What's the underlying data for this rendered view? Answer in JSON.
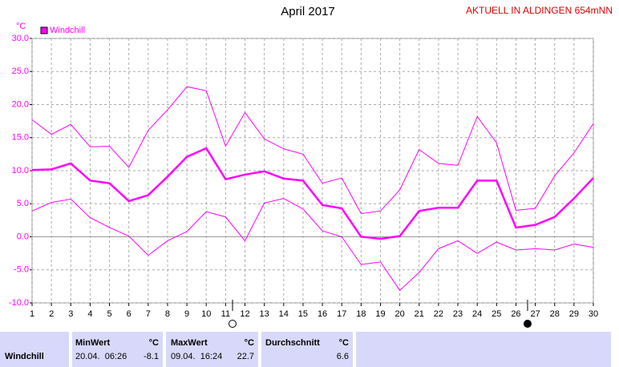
{
  "chart_data": {
    "type": "line",
    "title": "April 2017",
    "subtitle": "AKTUELL IN ALDINGEN 654mNN",
    "y_label": "°C",
    "x": [
      1,
      2,
      3,
      4,
      5,
      6,
      7,
      8,
      9,
      10,
      11,
      12,
      13,
      14,
      15,
      16,
      17,
      18,
      19,
      20,
      21,
      22,
      23,
      24,
      25,
      26,
      27,
      28,
      29,
      30
    ],
    "xlim": [
      1,
      30
    ],
    "xticks": [
      1,
      2,
      3,
      4,
      5,
      6,
      7,
      8,
      9,
      10,
      11,
      12,
      13,
      14,
      15,
      16,
      17,
      18,
      19,
      20,
      21,
      22,
      23,
      24,
      25,
      26,
      27,
      28,
      29,
      30
    ],
    "ylim": [
      -10,
      30
    ],
    "yticks": [
      {
        "value": -10,
        "label": "-10.0"
      },
      {
        "value": -5,
        "label": "-5.0"
      },
      {
        "value": 0,
        "label": "0.0"
      },
      {
        "value": 5,
        "label": "5.0"
      },
      {
        "value": 10,
        "label": "10.0"
      },
      {
        "value": 15,
        "label": "15.0"
      },
      {
        "value": 20,
        "label": "20.0"
      },
      {
        "value": 25,
        "label": "25.0"
      },
      {
        "value": 30,
        "label": "30.0"
      }
    ],
    "grid": true,
    "legend": "top-left",
    "series": [
      {
        "name": "Windchill",
        "color": "#ff00ff",
        "values": [
          10.1,
          10.2,
          11.1,
          8.5,
          8.1,
          5.4,
          6.3,
          9.1,
          12.1,
          13.4,
          8.7,
          9.4,
          9.9,
          8.8,
          8.5,
          4.8,
          4.3,
          0.0,
          -0.3,
          0.1,
          3.9,
          4.4,
          4.4,
          8.5,
          8.5,
          1.4,
          1.8,
          3.0,
          5.8,
          8.9
        ]
      },
      {
        "color": "#ff00ff",
        "values": [
          17.7,
          15.5,
          17.0,
          13.6,
          13.7,
          10.5,
          16.1,
          19.2,
          22.7,
          22.1,
          13.7,
          18.8,
          14.8,
          13.3,
          12.5,
          8.1,
          8.9,
          3.5,
          3.9,
          7.1,
          13.2,
          11.1,
          10.8,
          18.2,
          14.2,
          4.0,
          4.3,
          9.2,
          12.7,
          17.1
        ]
      },
      {
        "color": "#ff00ff",
        "values": [
          3.9,
          5.2,
          5.7,
          2.9,
          1.4,
          0.1,
          -2.8,
          -0.6,
          0.8,
          3.8,
          3.0,
          -0.6,
          5.1,
          5.8,
          4.2,
          0.9,
          0.0,
          -4.2,
          -3.8,
          -8.1,
          -5.4,
          -1.8,
          -0.6,
          -2.5,
          -0.8,
          -2.0,
          -1.8,
          -2.0,
          -1.1,
          -1.6
        ]
      }
    ]
  },
  "table": {
    "headers": [
      "MinWert",
      "°C",
      "MaxWert",
      "°C",
      "Durchschnitt",
      "°C"
    ],
    "rows": [
      [
        "Windchill",
        "20.04.  06:26",
        "-8.1",
        "09.04.  16:24",
        "22.7",
        "6.6"
      ]
    ]
  }
}
